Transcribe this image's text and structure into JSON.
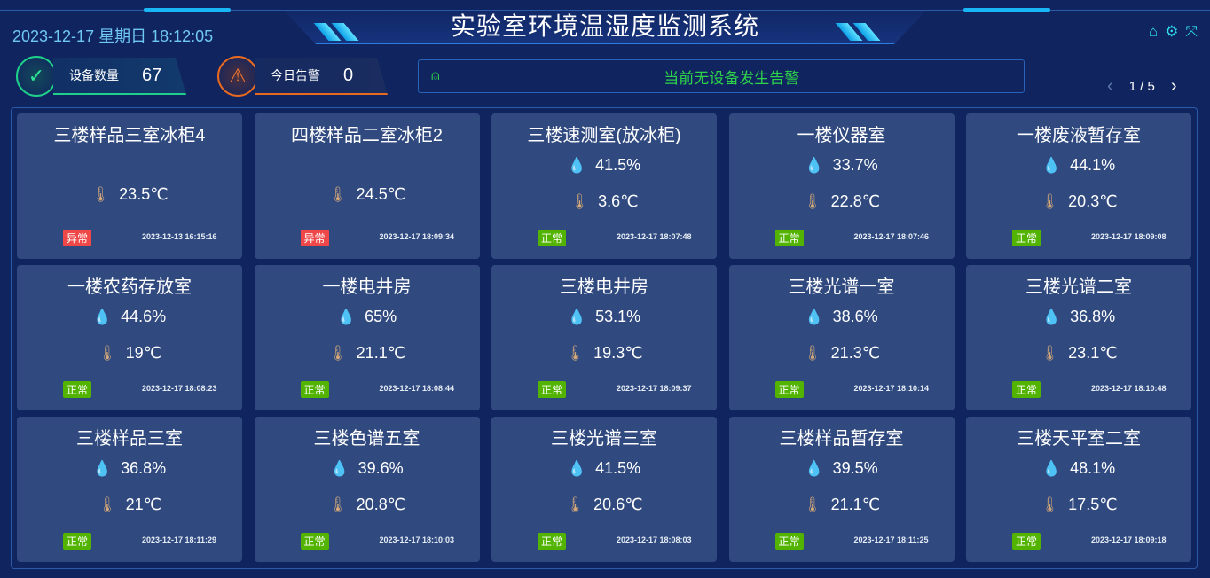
{
  "header": {
    "title": "实验室环境温湿度监测系统",
    "datetime": "2023-12-17 星期日 18:12:05"
  },
  "stats": {
    "devices_label": "设备数量",
    "devices_value": "67",
    "alarms_label": "今日告警",
    "alarms_value": "0"
  },
  "alarm_bar": {
    "text": "当前无设备发生告警"
  },
  "pager": {
    "text": "1 / 5"
  },
  "colors": {
    "normal": "#52b400",
    "abnormal": "#f04848",
    "humidity": "#19c6ef",
    "temperature": "#d3a777"
  },
  "cards": [
    {
      "name": "三楼样品三室冰柜4",
      "humidity": null,
      "temperature": "23.5℃",
      "status": "异常",
      "time": "2023-12-13 16:15:16"
    },
    {
      "name": "四楼样品二室冰柜2",
      "humidity": null,
      "temperature": "24.5℃",
      "status": "异常",
      "time": "2023-12-17 18:09:34"
    },
    {
      "name": "三楼速测室(放冰柜)",
      "humidity": "41.5%",
      "temperature": "3.6℃",
      "status": "正常",
      "time": "2023-12-17 18:07:48"
    },
    {
      "name": "一楼仪器室",
      "humidity": "33.7%",
      "temperature": "22.8℃",
      "status": "正常",
      "time": "2023-12-17 18:07:46"
    },
    {
      "name": "一楼废液暂存室",
      "humidity": "44.1%",
      "temperature": "20.3℃",
      "status": "正常",
      "time": "2023-12-17 18:09:08"
    },
    {
      "name": "一楼农药存放室",
      "humidity": "44.6%",
      "temperature": "19℃",
      "status": "正常",
      "time": "2023-12-17 18:08:23"
    },
    {
      "name": "一楼电井房",
      "humidity": "65%",
      "temperature": "21.1℃",
      "status": "正常",
      "time": "2023-12-17 18:08:44"
    },
    {
      "name": "三楼电井房",
      "humidity": "53.1%",
      "temperature": "19.3℃",
      "status": "正常",
      "time": "2023-12-17 18:09:37"
    },
    {
      "name": "三楼光谱一室",
      "humidity": "38.6%",
      "temperature": "21.3℃",
      "status": "正常",
      "time": "2023-12-17 18:10:14"
    },
    {
      "name": "三楼光谱二室",
      "humidity": "36.8%",
      "temperature": "23.1℃",
      "status": "正常",
      "time": "2023-12-17 18:10:48"
    },
    {
      "name": "三楼样品三室",
      "humidity": "36.8%",
      "temperature": "21℃",
      "status": "正常",
      "time": "2023-12-17 18:11:29"
    },
    {
      "name": "三楼色谱五室",
      "humidity": "39.6%",
      "temperature": "20.8℃",
      "status": "正常",
      "time": "2023-12-17 18:10:03"
    },
    {
      "name": "三楼光谱三室",
      "humidity": "41.5%",
      "temperature": "20.6℃",
      "status": "正常",
      "time": "2023-12-17 18:08:03"
    },
    {
      "name": "三楼样品暂存室",
      "humidity": "39.5%",
      "temperature": "21.1℃",
      "status": "正常",
      "time": "2023-12-17 18:11:25"
    },
    {
      "name": "三楼天平室二室",
      "humidity": "48.1%",
      "temperature": "17.5℃",
      "status": "正常",
      "time": "2023-12-17 18:09:18"
    }
  ]
}
